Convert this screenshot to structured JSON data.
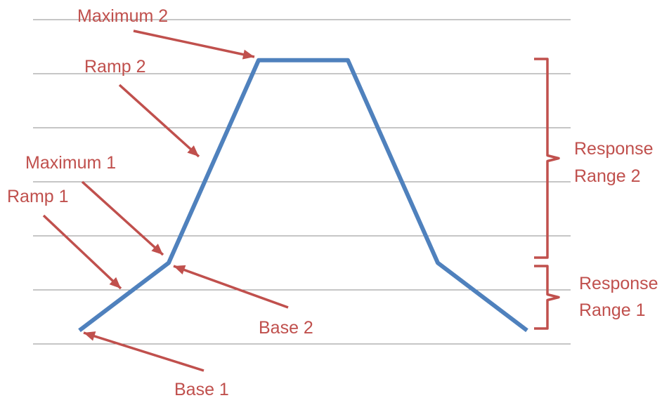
{
  "chart_data": {
    "type": "line",
    "x": [
      0,
      1,
      2,
      3,
      4,
      5
    ],
    "values": [
      0.25,
      1.5,
      5.25,
      5.25,
      1.5,
      0.25
    ],
    "ylim": [
      0,
      6
    ],
    "grid": true,
    "colors": {
      "line": "#4f81bd",
      "annotation": "#c0504d",
      "grid": "#8c8c8c"
    },
    "annotations": [
      {
        "text": "Maximum 2",
        "point": 2
      },
      {
        "text": "Ramp 2",
        "segment": [
          1,
          2
        ]
      },
      {
        "text": "Maximum 1",
        "point": 1
      },
      {
        "text": "Ramp 1",
        "segment": [
          0,
          1
        ]
      },
      {
        "text": "Base 2",
        "point": 1
      },
      {
        "text": "Base 1",
        "point": 0
      }
    ],
    "ranges": [
      {
        "lines": [
          "Response",
          "Range 2"
        ],
        "y": [
          1.5,
          5.25
        ]
      },
      {
        "lines": [
          "Response",
          "Range 1"
        ],
        "y": [
          0.25,
          1.5
        ]
      }
    ]
  }
}
